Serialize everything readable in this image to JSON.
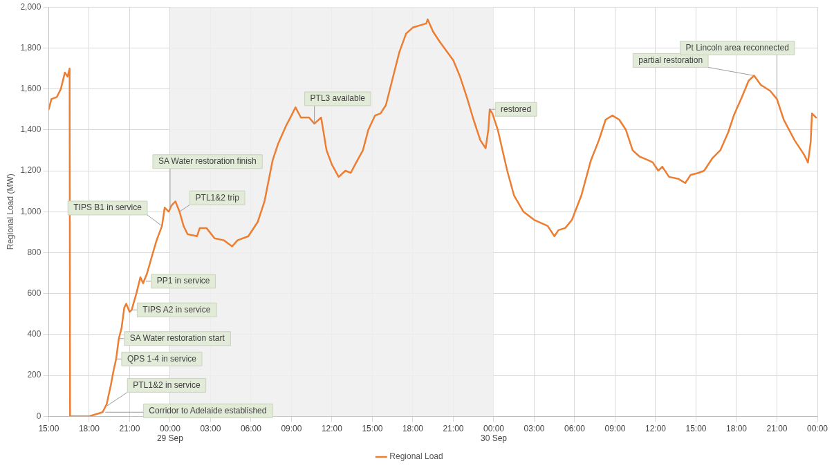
{
  "chart_data": {
    "type": "line",
    "ylabel": "Regional Load (MW)",
    "legend": "bottom",
    "grid": true,
    "marker": "none",
    "line_style": "solid",
    "xlim": [
      "--09-28T15:00",
      "--10-01T00:00"
    ],
    "ylim": [
      0,
      2000
    ],
    "xticks": [
      {
        "value": "--09-28T15:00",
        "label": "15:00"
      },
      {
        "value": "--09-28T18:00",
        "label": "18:00"
      },
      {
        "value": "--09-28T21:00",
        "label": "21:00"
      },
      {
        "value": "--09-29T00:00",
        "label": "00:00\n29 Sep"
      },
      {
        "value": "--09-29T03:00",
        "label": "03:00"
      },
      {
        "value": "--09-29T06:00",
        "label": "06:00"
      },
      {
        "value": "--09-29T09:00",
        "label": "09:00"
      },
      {
        "value": "--09-29T12:00",
        "label": "12:00"
      },
      {
        "value": "--09-29T15:00",
        "label": "15:00"
      },
      {
        "value": "--09-29T18:00",
        "label": "18:00"
      },
      {
        "value": "--09-29T21:00",
        "label": "21:00"
      },
      {
        "value": "--09-30T00:00",
        "label": "00:00\n30 Sep"
      },
      {
        "value": "--09-30T03:00",
        "label": "03:00"
      },
      {
        "value": "--09-30T06:00",
        "label": "06:00"
      },
      {
        "value": "--09-30T09:00",
        "label": "09:00"
      },
      {
        "value": "--09-30T12:00",
        "label": "12:00"
      },
      {
        "value": "--09-30T15:00",
        "label": "15:00"
      },
      {
        "value": "--09-30T18:00",
        "label": "18:00"
      },
      {
        "value": "--09-30T21:00",
        "label": "21:00"
      },
      {
        "value": "--10-01T00:00",
        "label": "00:00"
      }
    ],
    "yticks": [
      0,
      200,
      400,
      600,
      800,
      {
        "value": 1000,
        "label": "1,000"
      },
      {
        "value": 1200,
        "label": "1,200"
      },
      {
        "value": 1400,
        "label": "1,400"
      },
      {
        "value": 1600,
        "label": "1,600"
      },
      {
        "value": 1800,
        "label": "1,800"
      },
      {
        "value": 2000,
        "label": "2,000"
      }
    ],
    "bands": [
      {
        "axis": "x",
        "from": "--09-29T00:00",
        "to": "--09-30T00:00",
        "color": "#efefef"
      }
    ],
    "series": [
      {
        "name": "Regional Load",
        "color": "#ed7d31",
        "x": [
          "--09-28T15:00",
          "--09-28T15:12",
          "--09-28T15:36",
          "--09-28T15:54",
          "--09-28T16:12",
          "--09-28T16:24",
          "--09-28T16:33",
          "--09-28T16:35",
          "--09-28T18:00",
          "--09-28T18:30",
          "--09-28T19:00",
          "--09-28T19:18",
          "--09-28T19:36",
          "--09-28T19:48",
          "--09-28T20:00",
          "--09-28T20:12",
          "--09-28T20:24",
          "--09-28T20:36",
          "--09-28T20:45",
          "--09-28T21:00",
          "--09-28T21:09",
          "--09-28T21:30",
          "--09-28T21:48",
          "--09-28T22:00",
          "--09-28T22:18",
          "--09-28T22:36",
          "--09-28T23:00",
          "--09-28T23:24",
          "--09-28T23:36",
          "--09-28T23:54",
          "--09-29T00:06",
          "--09-29T00:24",
          "--09-29T00:42",
          "--09-29T01:00",
          "--09-29T01:18",
          "--09-29T02:00",
          "--09-29T02:12",
          "--09-29T02:42",
          "--09-29T03:18",
          "--09-29T04:00",
          "--09-29T04:36",
          "--09-29T05:00",
          "--09-29T05:48",
          "--09-29T06:30",
          "--09-29T07:00",
          "--09-29T07:36",
          "--09-29T08:00",
          "--09-29T08:36",
          "--09-29T09:00",
          "--09-29T09:18",
          "--09-29T09:42",
          "--09-29T10:18",
          "--09-29T10:42",
          "--09-29T11:12",
          "--09-29T11:36",
          "--09-29T12:00",
          "--09-29T12:30",
          "--09-29T13:00",
          "--09-29T13:24",
          "--09-29T13:48",
          "--09-29T14:18",
          "--09-29T14:42",
          "--09-29T15:12",
          "--09-29T15:36",
          "--09-29T16:00",
          "--09-29T16:30",
          "--09-29T17:00",
          "--09-29T17:30",
          "--09-29T18:00",
          "--09-29T18:30",
          "--09-29T19:00",
          "--09-29T19:06",
          "--09-29T19:30",
          "--09-29T20:00",
          "--09-29T21:00",
          "--09-29T21:30",
          "--09-29T22:00",
          "--09-29T22:30",
          "--09-29T23:00",
          "--09-29T23:24",
          "--09-29T23:36",
          "--09-29T23:42",
          "--09-29T23:54",
          "--09-30T00:18",
          "--09-30T01:00",
          "--09-30T01:30",
          "--09-30T02:12",
          "--09-30T03:00",
          "--09-30T04:00",
          "--09-30T04:30",
          "--09-30T04:48",
          "--09-30T05:18",
          "--09-30T05:48",
          "--09-30T06:30",
          "--09-30T07:12",
          "--09-30T07:48",
          "--09-30T08:18",
          "--09-30T08:48",
          "--09-30T09:18",
          "--09-30T09:48",
          "--09-30T10:18",
          "--09-30T10:48",
          "--09-30T11:30",
          "--09-30T11:48",
          "--09-30T12:12",
          "--09-30T12:30",
          "--09-30T13:00",
          "--09-30T13:42",
          "--09-30T14:12",
          "--09-30T14:36",
          "--09-30T15:12",
          "--09-30T15:36",
          "--09-30T16:12",
          "--09-30T16:48",
          "--09-30T17:24",
          "--09-30T17:48",
          "--09-30T18:24",
          "--09-30T18:54",
          "--09-30T19:18",
          "--09-30T19:48",
          "--09-30T20:30",
          "--09-30T21:00",
          "--09-30T21:30",
          "--09-30T22:18",
          "--09-30T23:00",
          "--09-30T23:18",
          "--09-30T23:30",
          "--09-30T23:36",
          "--09-30T23:54"
        ],
        "values": [
          1500,
          1550,
          1560,
          1600,
          1680,
          1660,
          1700,
          0,
          0,
          10,
          20,
          60,
          150,
          220,
          280,
          380,
          430,
          530,
          550,
          510,
          520,
          600,
          680,
          650,
          700,
          770,
          860,
          930,
          1020,
          1000,
          1030,
          1050,
          1000,
          930,
          890,
          880,
          920,
          920,
          870,
          860,
          830,
          860,
          880,
          950,
          1050,
          1250,
          1330,
          1420,
          1470,
          1510,
          1460,
          1460,
          1430,
          1460,
          1300,
          1230,
          1170,
          1200,
          1190,
          1240,
          1300,
          1400,
          1470,
          1480,
          1520,
          1650,
          1780,
          1870,
          1900,
          1910,
          1920,
          1940,
          1880,
          1830,
          1740,
          1660,
          1560,
          1450,
          1350,
          1310,
          1400,
          1500,
          1480,
          1400,
          1200,
          1080,
          1000,
          960,
          930,
          880,
          910,
          920,
          960,
          1080,
          1250,
          1350,
          1450,
          1470,
          1450,
          1400,
          1300,
          1270,
          1250,
          1240,
          1200,
          1220,
          1170,
          1160,
          1140,
          1180,
          1190,
          1200,
          1260,
          1300,
          1390,
          1470,
          1560,
          1640,
          1665,
          1620,
          1590,
          1550,
          1450,
          1350,
          1280,
          1240,
          1340,
          1480,
          1460
        ]
      }
    ],
    "annotations": [
      {
        "text": "Corridor to Adelaide established",
        "x": "--09-28T19:12",
        "y": 20
      },
      {
        "text": "PTL1&2 in service",
        "x": "--09-28T19:18",
        "y": 50
      },
      {
        "text": "QPS 1-4 in service",
        "x": "--09-28T20:00",
        "y": 280
      },
      {
        "text": "SA Water restoration start",
        "x": "--09-28T20:12",
        "y": 380
      },
      {
        "text": "TIPS A2 in service",
        "x": "--09-28T21:09",
        "y": 520
      },
      {
        "text": "PP1 in service",
        "x": "--09-28T22:12",
        "y": 660
      },
      {
        "text": "TIPS B1 in service",
        "x": "--09-28T23:24",
        "y": 930
      },
      {
        "text": "SA Water restoration finish",
        "x": "--09-29T00:00",
        "y": 1015
      },
      {
        "text": "PTL1&2 trip",
        "x": "--09-29T00:42",
        "y": 1000
      },
      {
        "text": "PTL3 available",
        "x": "--09-29T10:42",
        "y": 1430
      },
      {
        "text": "restored",
        "x": "--09-29T23:42",
        "y": 1500
      },
      {
        "text": "partial restoration",
        "x": "--09-30T19:18",
        "y": 1665
      },
      {
        "text": "Pt Lincoln area reconnected",
        "x": "--09-30T21:00",
        "y": 1550
      }
    ]
  }
}
